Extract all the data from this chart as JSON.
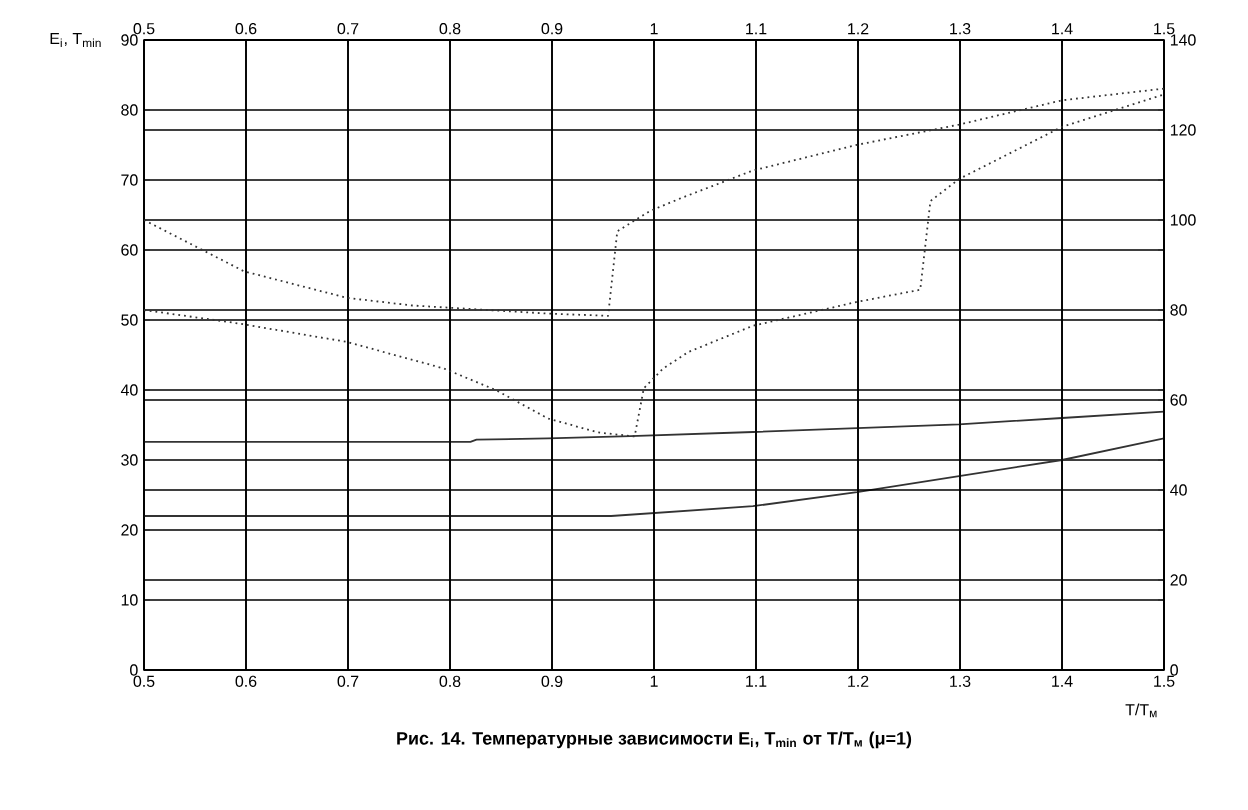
{
  "chart_data": [
    {
      "type": "line",
      "title": "Рис. 14. Температурные зависимости E$_{i}$, T$_{min}$ от T/T$_{м}$ (μ=1)",
      "xlabel": "T/T$_{м}$",
      "ylabel": "E$_{i}$, T$_{min}$",
      "color": "#333333",
      "line_style": "solid",
      "grid": true,
      "xlim": [
        0.5,
        1.5
      ],
      "xticks": [
        0.5,
        0.6,
        0.7,
        0.8,
        0.9,
        1,
        1.1,
        1.2,
        1.3,
        1.4,
        1.5
      ],
      "ylim": [
        0,
        90
      ],
      "yticks": [
        0,
        10,
        20,
        30,
        40,
        50,
        60,
        70,
        80,
        90
      ],
      "series": [
        {
          "x": [
            0.5,
            0.82,
            0.826,
            0.896,
            0.977,
            1.097,
            1.299,
            1.4,
            1.5
          ],
          "values": [
            32.6,
            32.6,
            32.9,
            33.1,
            33.4,
            34,
            35.1,
            36,
            36.9
          ]
        },
        {
          "x": [
            0.5,
            0.958,
            1.097,
            1.199,
            1.299,
            1.4,
            1.5
          ],
          "values": [
            22,
            22,
            23.4,
            25.4,
            27.7,
            30,
            33.1
          ]
        }
      ]
    },
    {
      "type": "line",
      "color": "#333333",
      "line_style": "dotted",
      "grid": true,
      "xlim": [
        0.5,
        1.5
      ],
      "xticks": [
        0.5,
        0.6,
        0.7,
        0.8,
        0.9,
        1,
        1.1,
        1.2,
        1.3,
        1.4,
        1.5
      ],
      "ylim": [
        0,
        140
      ],
      "yticks": [
        0,
        20,
        40,
        60,
        80,
        100,
        120,
        140
      ],
      "series": [
        {
          "x": [
            0.5,
            0.598,
            0.699,
            0.763,
            0.896,
            0.955,
            0.964,
            0.996,
            1.028,
            1.097,
            1.199,
            1.299,
            1.4,
            1.5
          ],
          "values": [
            100,
            88.6,
            82.7,
            81,
            79.2,
            78.7,
            97.5,
            102,
            105,
            111,
            116.7,
            121.2,
            126.6,
            129.2
          ]
        },
        {
          "x": [
            0.5,
            0.593,
            0.699,
            0.794,
            0.845,
            0.896,
            0.945,
            0.981,
            0.99,
            1.009,
            1.034,
            1.097,
            1.199,
            1.261,
            1.271,
            1.299,
            1.4,
            1.5
          ],
          "values": [
            80,
            77,
            72.9,
            67,
            62.2,
            55.9,
            52.8,
            51.9,
            62.6,
            67,
            70.7,
            76.5,
            81.8,
            84.5,
            104.2,
            109.1,
            120.7,
            127.9
          ]
        }
      ]
    }
  ]
}
